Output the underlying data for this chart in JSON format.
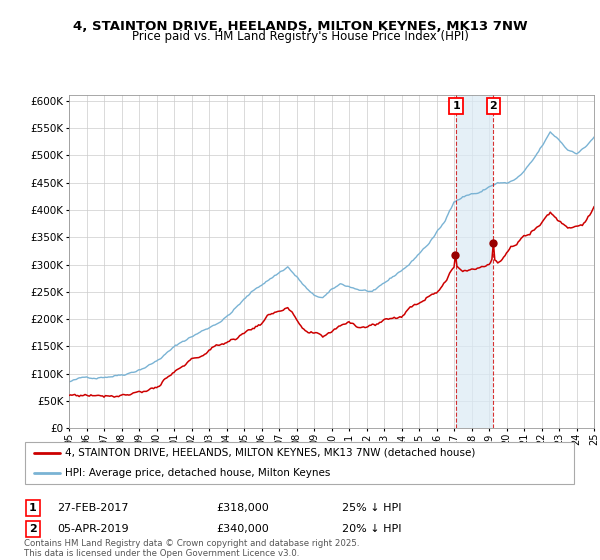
{
  "title": "4, STAINTON DRIVE, HEELANDS, MILTON KEYNES, MK13 7NW",
  "subtitle": "Price paid vs. HM Land Registry's House Price Index (HPI)",
  "legend_line1": "4, STAINTON DRIVE, HEELANDS, MILTON KEYNES, MK13 7NW (detached house)",
  "legend_line2": "HPI: Average price, detached house, Milton Keynes",
  "transaction1_date": "27-FEB-2017",
  "transaction1_price": 318000,
  "transaction1_note": "25% ↓ HPI",
  "transaction2_date": "05-APR-2019",
  "transaction2_price": 340000,
  "transaction2_note": "20% ↓ HPI",
  "footnote": "Contains HM Land Registry data © Crown copyright and database right 2025.\nThis data is licensed under the Open Government Licence v3.0.",
  "hpi_color": "#7ab3d4",
  "price_color": "#cc0000",
  "marker_color": "#990000",
  "vline_color": "#cc0000",
  "shade_color": "#daeaf5",
  "ylim": [
    0,
    610000
  ],
  "yticks": [
    0,
    50000,
    100000,
    150000,
    200000,
    250000,
    300000,
    350000,
    400000,
    450000,
    500000,
    550000,
    600000
  ],
  "start_year": 1995,
  "end_year": 2025,
  "t1_year": 2017.12,
  "t2_year": 2019.25,
  "t1_price": 318000,
  "t2_price": 340000
}
